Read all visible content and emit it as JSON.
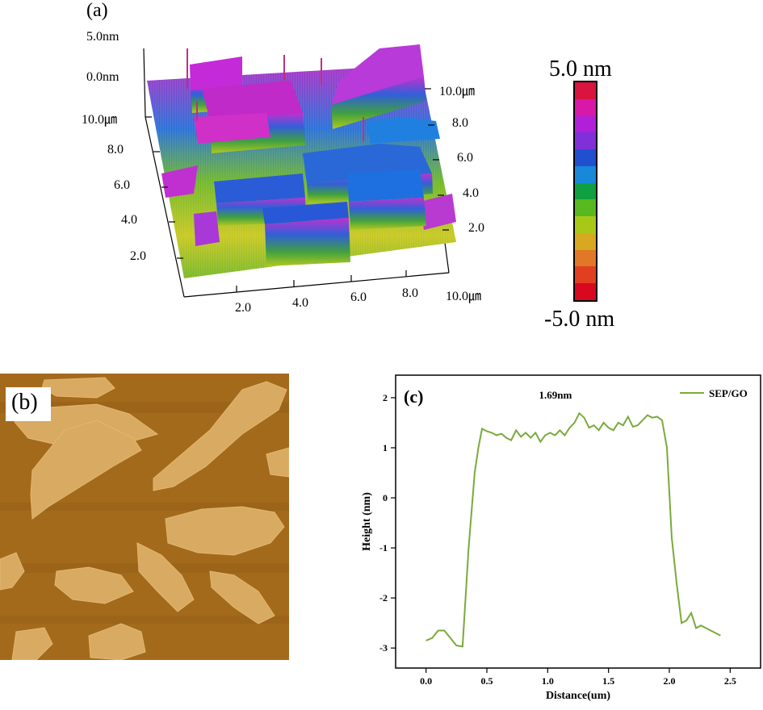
{
  "chart_data": [
    {
      "type": "other",
      "panel": "(a)",
      "z_labels": [
        "5.0nm",
        "0.0nm"
      ],
      "left_axis_labels": [
        "10.0㎛",
        "8.0",
        "6.0",
        "4.0",
        "2.0"
      ],
      "right_axis_labels": [
        "10.0㎛",
        "8.0",
        "6.0",
        "4.0",
        "2.0"
      ],
      "bottom_axis_labels": [
        "2.0",
        "4.0",
        "6.0",
        "8.0",
        "10.0㎛"
      ],
      "colorbar": {
        "max_label": "5.0 nm",
        "min_label": "-5.0 nm",
        "colors": [
          "#d8143f",
          "#d818a8",
          "#b020d8",
          "#8030d8",
          "#2050d0",
          "#1888d8",
          "#10a040",
          "#58b820",
          "#a8c818",
          "#d8a820",
          "#e07828",
          "#e04020",
          "#d80820"
        ]
      }
    },
    {
      "type": "image",
      "panel": "(b)",
      "background_color": "#a46a1c",
      "flake_color": "#d8aa62"
    },
    {
      "type": "line",
      "panel": "(c)",
      "title": "",
      "xlabel": "Distance(um)",
      "ylabel": "Height (nm)",
      "xlim": [
        -0.25,
        2.75
      ],
      "ylim": [
        -3.4,
        2.45
      ],
      "x_ticks": [
        0.0,
        0.5,
        1.0,
        1.5,
        2.0,
        2.5
      ],
      "x_tick_labels": [
        "0.0",
        "0.5",
        "1.0",
        "1.5",
        "2.0",
        "2.5"
      ],
      "y_ticks": [
        2,
        1,
        0,
        -1,
        -2,
        -3
      ],
      "y_tick_labels": [
        "2",
        "1",
        "0",
        "-1",
        "-2",
        "-3"
      ],
      "annotation": "1.69nm",
      "legend_position": "top-right",
      "series": [
        {
          "name": "SEP/GO",
          "color": "#7aaa3a",
          "x": [
            0.0,
            0.05,
            0.1,
            0.15,
            0.2,
            0.25,
            0.3,
            0.35,
            0.4,
            0.43,
            0.46,
            0.5,
            0.54,
            0.58,
            0.62,
            0.66,
            0.7,
            0.74,
            0.78,
            0.82,
            0.86,
            0.9,
            0.94,
            0.98,
            1.02,
            1.06,
            1.1,
            1.14,
            1.18,
            1.22,
            1.26,
            1.3,
            1.34,
            1.38,
            1.42,
            1.46,
            1.5,
            1.54,
            1.58,
            1.62,
            1.66,
            1.7,
            1.74,
            1.78,
            1.82,
            1.86,
            1.9,
            1.94,
            1.98,
            2.02,
            2.06,
            2.1,
            2.14,
            2.18,
            2.22,
            2.26,
            2.3,
            2.34,
            2.38,
            2.42
          ],
          "y": [
            -2.85,
            -2.8,
            -2.65,
            -2.65,
            -2.8,
            -2.95,
            -2.97,
            -1.0,
            0.5,
            1.0,
            1.38,
            1.33,
            1.3,
            1.25,
            1.28,
            1.2,
            1.15,
            1.35,
            1.22,
            1.3,
            1.2,
            1.3,
            1.12,
            1.25,
            1.3,
            1.25,
            1.35,
            1.25,
            1.4,
            1.5,
            1.69,
            1.6,
            1.4,
            1.45,
            1.35,
            1.5,
            1.4,
            1.35,
            1.5,
            1.45,
            1.62,
            1.42,
            1.45,
            1.55,
            1.65,
            1.6,
            1.62,
            1.55,
            1.0,
            -0.8,
            -1.7,
            -2.5,
            -2.45,
            -2.3,
            -2.6,
            -2.55,
            -2.6,
            -2.65,
            -2.7,
            -2.75
          ]
        }
      ]
    }
  ]
}
